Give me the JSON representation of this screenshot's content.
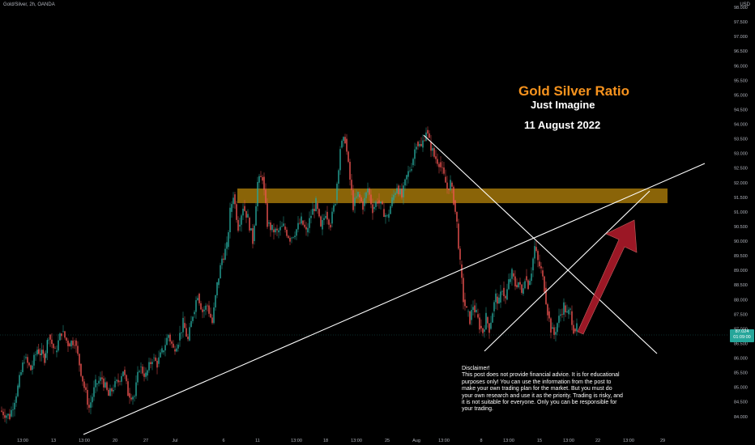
{
  "symbol": "Gold/Silver, 2h, OANDA",
  "currency": "USD",
  "annotations": {
    "title": "Gold Silver Ratio",
    "subtitle": "Just Imagine",
    "date": "11 August 2022"
  },
  "disclaimer": {
    "heading": "Disclaimer!",
    "body": "This post does not provide financial advice. It is for educational purposes only! You can use the information from the post to make your own trading plan for the market. But you must do your own research and use it as the priority. Trading is risky, and it is not suitable for everyone. Only you can be responsible for your trading."
  },
  "price_tag": {
    "price": "87.024",
    "countdown": "01:09:00"
  },
  "colors": {
    "up": "#26a69a",
    "down": "#ef5350",
    "zone": "#b8860b",
    "arrow": "#b71c2c",
    "title": "#f7931e"
  },
  "chart_data": {
    "type": "candlestick",
    "ylim": [
      83.8,
      98.0
    ],
    "y_ticks": [
      "98.000",
      "97.500",
      "97.000",
      "96.500",
      "96.000",
      "95.500",
      "95.000",
      "94.500",
      "94.000",
      "93.500",
      "93.000",
      "92.500",
      "92.000",
      "91.500",
      "91.000",
      "90.500",
      "90.000",
      "89.500",
      "89.000",
      "88.500",
      "88.000",
      "87.500",
      "87.000",
      "86.500",
      "86.000",
      "85.500",
      "85.000",
      "84.500",
      "84.000"
    ],
    "x_ticks": [
      "13:00",
      "13",
      "13:00",
      "20",
      "27",
      "Jul",
      "6",
      "11",
      "13:00",
      "18",
      "13:00",
      "25",
      "Aug",
      "13:00",
      "8",
      "13:00",
      "15",
      "13:00",
      "22",
      "13:00",
      "29"
    ],
    "close_path": [
      [
        0,
        84.2
      ],
      [
        12,
        84.0
      ],
      [
        22,
        85.0
      ],
      [
        30,
        86.0
      ],
      [
        38,
        85.6
      ],
      [
        46,
        86.3
      ],
      [
        55,
        86.0
      ],
      [
        60,
        86.8
      ],
      [
        68,
        86.2
      ],
      [
        76,
        86.9
      ],
      [
        84,
        86.5
      ],
      [
        92,
        86.6
      ],
      [
        98,
        85.8
      ],
      [
        104,
        85.0
      ],
      [
        110,
        84.3
      ],
      [
        118,
        85.1
      ],
      [
        126,
        85.3
      ],
      [
        134,
        84.7
      ],
      [
        140,
        85.0
      ],
      [
        146,
        85.2
      ],
      [
        152,
        85.6
      ],
      [
        158,
        84.8
      ],
      [
        166,
        84.7
      ],
      [
        172,
        85.7
      ],
      [
        180,
        85.4
      ],
      [
        188,
        86.0
      ],
      [
        194,
        85.8
      ],
      [
        200,
        86.2
      ],
      [
        208,
        86.8
      ],
      [
        214,
        86.3
      ],
      [
        220,
        86.6
      ],
      [
        226,
        87.2
      ],
      [
        232,
        86.6
      ],
      [
        238,
        87.5
      ],
      [
        244,
        88.2
      ],
      [
        250,
        87.6
      ],
      [
        256,
        87.8
      ],
      [
        262,
        87.2
      ],
      [
        268,
        88.5
      ],
      [
        274,
        89.4
      ],
      [
        280,
        89.8
      ],
      [
        284,
        91.0
      ],
      [
        288,
        91.6
      ],
      [
        294,
        90.5
      ],
      [
        300,
        91.2
      ],
      [
        306,
        90.8
      ],
      [
        312,
        90.0
      ],
      [
        318,
        92.0
      ],
      [
        324,
        92.2
      ],
      [
        330,
        90.6
      ],
      [
        336,
        90.4
      ],
      [
        342,
        90.3
      ],
      [
        350,
        90.5
      ],
      [
        358,
        90.1
      ],
      [
        366,
        90.4
      ],
      [
        372,
        90.7
      ],
      [
        378,
        90.3
      ],
      [
        384,
        90.9
      ],
      [
        390,
        91.3
      ],
      [
        396,
        90.4
      ],
      [
        402,
        91.0
      ],
      [
        408,
        90.6
      ],
      [
        414,
        91.4
      ],
      [
        420,
        93.2
      ],
      [
        426,
        93.5
      ],
      [
        432,
        92.1
      ],
      [
        436,
        91.2
      ],
      [
        442,
        91.6
      ],
      [
        448,
        91.2
      ],
      [
        454,
        91.8
      ],
      [
        460,
        91.1
      ],
      [
        466,
        91.4
      ],
      [
        472,
        91.1
      ],
      [
        478,
        90.8
      ],
      [
        484,
        91.4
      ],
      [
        490,
        91.9
      ],
      [
        496,
        91.5
      ],
      [
        502,
        92.2
      ],
      [
        508,
        92.6
      ],
      [
        514,
        93.4
      ],
      [
        520,
        93.2
      ],
      [
        526,
        93.8
      ],
      [
        530,
        93.4
      ],
      [
        536,
        92.9
      ],
      [
        542,
        92.7
      ],
      [
        548,
        92.2
      ],
      [
        552,
        91.8
      ],
      [
        556,
        92.0
      ],
      [
        560,
        91.4
      ],
      [
        564,
        90.6
      ],
      [
        568,
        89.2
      ],
      [
        572,
        88.0
      ],
      [
        576,
        87.6
      ],
      [
        580,
        87.3
      ],
      [
        584,
        87.8
      ],
      [
        588,
        87.5
      ],
      [
        592,
        87.1
      ],
      [
        596,
        86.9
      ],
      [
        600,
        87.4
      ],
      [
        604,
        87.0
      ],
      [
        608,
        87.6
      ],
      [
        612,
        88.1
      ],
      [
        616,
        87.9
      ],
      [
        620,
        88.4
      ],
      [
        624,
        88.0
      ],
      [
        628,
        88.6
      ],
      [
        632,
        88.9
      ],
      [
        636,
        88.5
      ],
      [
        640,
        88.6
      ],
      [
        644,
        88.2
      ],
      [
        648,
        88.8
      ],
      [
        652,
        88.5
      ],
      [
        656,
        89.0
      ],
      [
        660,
        89.8
      ],
      [
        664,
        89.3
      ],
      [
        668,
        89.0
      ],
      [
        672,
        88.4
      ],
      [
        676,
        87.6
      ],
      [
        680,
        87.0
      ],
      [
        684,
        86.8
      ],
      [
        688,
        87.2
      ],
      [
        692,
        87.5
      ],
      [
        696,
        87.8
      ],
      [
        700,
        87.5
      ],
      [
        704,
        87.6
      ],
      [
        708,
        87.0
      ],
      [
        712,
        87.02
      ]
    ],
    "resistance_zone": [
      91.3,
      91.8
    ],
    "last_price": 87.024
  }
}
